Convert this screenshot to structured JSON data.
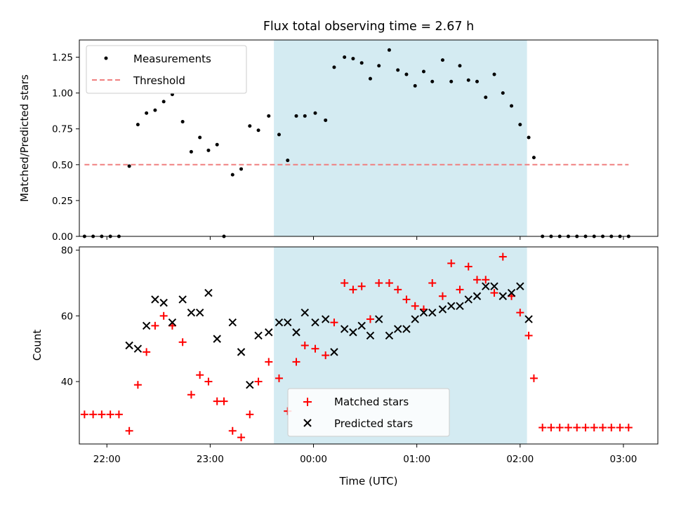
{
  "chart_data": [
    {
      "type": "scatter",
      "title": "Flux total observing time = 2.67 h",
      "xlabel": "",
      "ylabel": "Matched/Predicted stars",
      "xlim": [
        "21:44",
        "03:20"
      ],
      "ylim": [
        0,
        1.37
      ],
      "yticks": [
        "0.00",
        "0.25",
        "0.50",
        "0.75",
        "1.00",
        "1.25"
      ],
      "xticks": [
        "22:00",
        "23:00",
        "00:00",
        "01:00",
        "02:00",
        "03:00"
      ],
      "highlight_span": [
        "23:37",
        "02:04"
      ],
      "legend": {
        "position": "top-left",
        "entries": [
          "Measurements",
          "Threshold"
        ]
      },
      "series": [
        {
          "name": "Measurements",
          "marker": "dot",
          "color": "#000000",
          "x": [
            "21:47",
            "21:52",
            "21:57",
            "22:02",
            "22:07",
            "22:13",
            "22:18",
            "22:23",
            "22:28",
            "22:33",
            "22:38",
            "22:44",
            "22:49",
            "22:54",
            "22:59",
            "23:04",
            "23:08",
            "23:13",
            "23:18",
            "23:23",
            "23:28",
            "23:34",
            "23:40",
            "23:45",
            "23:50",
            "23:55",
            "00:01",
            "00:07",
            "00:12",
            "00:18",
            "00:23",
            "00:28",
            "00:33",
            "00:38",
            "00:44",
            "00:49",
            "00:54",
            "00:59",
            "01:04",
            "01:09",
            "01:15",
            "01:20",
            "01:25",
            "01:30",
            "01:35",
            "01:40",
            "01:45",
            "01:50",
            "01:55",
            "02:00",
            "02:05",
            "02:08",
            "02:13",
            "02:18",
            "02:23",
            "02:28",
            "02:33",
            "02:38",
            "02:43",
            "02:48",
            "02:53",
            "02:58",
            "03:03"
          ],
          "y": [
            0,
            0,
            0,
            0,
            0,
            0.49,
            0.78,
            0.86,
            0.88,
            0.94,
            0.99,
            0.8,
            0.59,
            0.69,
            0.6,
            0.64,
            0,
            0.43,
            0.47,
            0.77,
            0.74,
            0.84,
            0.71,
            0.53,
            0.84,
            0.84,
            0.86,
            0.81,
            1.18,
            1.25,
            1.24,
            1.21,
            1.1,
            1.19,
            1.3,
            1.16,
            1.13,
            1.05,
            1.15,
            1.08,
            1.23,
            1.08,
            1.19,
            1.09,
            1.08,
            0.97,
            1.13,
            1.0,
            0.91,
            0.78,
            0.69,
            0.55,
            0,
            0,
            0,
            0,
            0,
            0,
            0,
            0,
            0,
            0,
            0
          ]
        },
        {
          "name": "Threshold",
          "style": "dashed",
          "color": "#f08080",
          "x": [
            "21:47",
            "03:03"
          ],
          "y": [
            0.5,
            0.5
          ]
        }
      ]
    },
    {
      "type": "scatter",
      "title": "",
      "xlabel": "Time (UTC)",
      "ylabel": "Count",
      "xlim": [
        "21:44",
        "03:20"
      ],
      "ylim": [
        21,
        81
      ],
      "yticks": [
        "40",
        "60",
        "80"
      ],
      "xticks": [
        "22:00",
        "23:00",
        "00:00",
        "01:00",
        "02:00",
        "03:00"
      ],
      "highlight_span": [
        "23:37",
        "02:04"
      ],
      "legend": {
        "position": "lower-center",
        "entries": [
          "Matched stars",
          "Predicted stars"
        ]
      },
      "series": [
        {
          "name": "Matched stars",
          "marker": "plus",
          "color": "#ff0000",
          "x": [
            "21:47",
            "21:52",
            "21:57",
            "22:02",
            "22:07",
            "22:13",
            "22:18",
            "22:23",
            "22:28",
            "22:33",
            "22:38",
            "22:44",
            "22:49",
            "22:54",
            "22:59",
            "23:04",
            "23:08",
            "23:13",
            "23:18",
            "23:23",
            "23:28",
            "23:34",
            "23:40",
            "23:45",
            "23:50",
            "23:55",
            "00:01",
            "00:07",
            "00:12",
            "00:18",
            "00:23",
            "00:28",
            "00:33",
            "00:38",
            "00:44",
            "00:49",
            "00:54",
            "00:59",
            "01:04",
            "01:09",
            "01:15",
            "01:20",
            "01:25",
            "01:30",
            "01:35",
            "01:40",
            "01:45",
            "01:50",
            "01:55",
            "02:00",
            "02:05",
            "02:08",
            "02:13",
            "02:18",
            "02:23",
            "02:28",
            "02:33",
            "02:38",
            "02:43",
            "02:48",
            "02:53",
            "02:58",
            "03:03"
          ],
          "y": [
            30,
            30,
            30,
            30,
            30,
            25,
            39,
            49,
            57,
            60,
            57,
            52,
            36,
            42,
            40,
            34,
            34,
            25,
            23,
            30,
            40,
            46,
            41,
            31,
            46,
            51,
            50,
            48,
            58,
            70,
            68,
            69,
            59,
            70,
            70,
            68,
            65,
            63,
            62,
            70,
            66,
            76,
            68,
            75,
            71,
            71,
            67,
            78,
            66,
            61,
            54,
            41,
            26,
            26,
            26,
            26,
            26,
            26,
            26,
            26,
            26,
            26,
            26
          ]
        },
        {
          "name": "Predicted stars",
          "marker": "x",
          "color": "#000000",
          "x": [
            "22:13",
            "22:18",
            "22:23",
            "22:28",
            "22:33",
            "22:38",
            "22:44",
            "22:49",
            "22:54",
            "22:59",
            "23:04",
            "23:13",
            "23:18",
            "23:23",
            "23:28",
            "23:34",
            "23:40",
            "23:45",
            "23:50",
            "23:55",
            "00:01",
            "00:07",
            "00:12",
            "00:18",
            "00:23",
            "00:28",
            "00:33",
            "00:38",
            "00:44",
            "00:49",
            "00:54",
            "00:59",
            "01:04",
            "01:09",
            "01:15",
            "01:20",
            "01:25",
            "01:30",
            "01:35",
            "01:40",
            "01:45",
            "01:50",
            "01:55",
            "02:00",
            "02:05"
          ],
          "y": [
            51,
            50,
            57,
            65,
            64,
            58,
            65,
            61,
            61,
            67,
            53,
            58,
            49,
            39,
            54,
            55,
            58,
            58,
            55,
            61,
            58,
            59,
            49,
            56,
            55,
            57,
            54,
            59,
            54,
            56,
            56,
            59,
            61,
            61,
            62,
            63,
            63,
            65,
            66,
            69,
            69,
            66,
            67,
            69,
            59
          ]
        }
      ]
    }
  ],
  "colors": {
    "span": "#d4ebf2",
    "threshold": "#f08080",
    "matched": "#ff0000",
    "predicted": "#000000",
    "measurement": "#000000"
  }
}
